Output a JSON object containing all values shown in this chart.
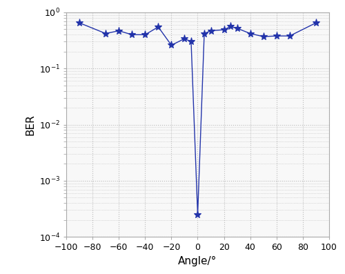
{
  "angles": [
    -90,
    -70,
    -60,
    -50,
    -40,
    -30,
    -20,
    -10,
    -5,
    0,
    5,
    10,
    20,
    25,
    30,
    40,
    50,
    60,
    70,
    90
  ],
  "ber": [
    0.65,
    0.42,
    0.47,
    0.4,
    0.4,
    0.55,
    0.26,
    0.34,
    0.3,
    0.00025,
    0.42,
    0.47,
    0.49,
    0.56,
    0.52,
    0.42,
    0.37,
    0.38,
    0.38,
    0.65
  ],
  "line_color": "#2233aa",
  "markersize": 8,
  "linewidth": 1.0,
  "xlabel": "Angle/°",
  "ylabel": "BER",
  "xlim": [
    -100,
    100
  ],
  "ylim_log": [
    -4,
    0
  ],
  "xticks": [
    -100,
    -80,
    -60,
    -40,
    -20,
    0,
    20,
    40,
    60,
    80,
    100
  ],
  "yticks_log": [
    -4,
    -3,
    -2,
    -1,
    0
  ],
  "grid_color": "#bbbbbb",
  "grid_style": ":",
  "bg_color": "#ffffff",
  "axes_bg_color": "#f8f8f8",
  "spine_color": "#aaaaaa",
  "tick_label_fontsize": 9,
  "axis_label_fontsize": 11
}
